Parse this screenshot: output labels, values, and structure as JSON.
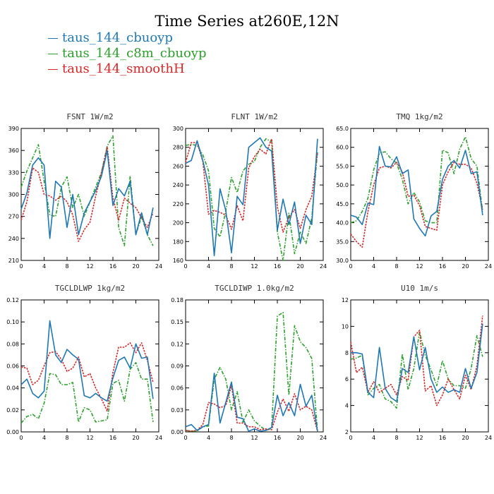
{
  "title": "Time Series at260E,12N",
  "legend": [
    {
      "label": "taus_144_cbuoyp",
      "color": "#1f77b4"
    },
    {
      "label": "taus_144_c8m_cbuoyp",
      "color": "#2ca02c"
    },
    {
      "label": "taus_144_smoothH",
      "color": "#d62728"
    }
  ],
  "chart_data": [
    {
      "type": "line",
      "title": "FSNT   1W/m2",
      "x": [
        0,
        1,
        2,
        3,
        4,
        5,
        6,
        7,
        8,
        9,
        10,
        11,
        12,
        13,
        14,
        15,
        16,
        17,
        18,
        19,
        20,
        21,
        22,
        23
      ],
      "xlim": [
        0,
        24
      ],
      "ylim": [
        210,
        390
      ],
      "xticks": [
        "0",
        "4",
        "8",
        "12",
        "16",
        "20",
        "24"
      ],
      "yticks": [
        "210",
        "240",
        "270",
        "300",
        "330",
        "360",
        "390"
      ],
      "series": [
        {
          "name": "taus_144_cbuoyp",
          "color": "#1f77b4",
          "values": [
            280,
            302,
            340,
            350,
            340,
            240,
            318,
            310,
            255,
            300,
            245,
            275,
            290,
            305,
            325,
            360,
            285,
            308,
            298,
            318,
            245,
            275,
            245,
            282
          ]
        },
        {
          "name": "taus_144_c8m_cbuoyp",
          "color": "#2ca02c",
          "values": [
            310,
            332,
            350,
            368,
            318,
            272,
            270,
            310,
            324,
            282,
            300,
            270,
            290,
            310,
            330,
            366,
            380,
            255,
            230,
            325,
            245,
            270,
            245,
            230
          ]
        },
        {
          "name": "taus_144_smoothH",
          "color": "#d62728",
          "values": [
            265,
            290,
            336,
            330,
            300,
            298,
            292,
            298,
            290,
            272,
            236,
            252,
            262,
            298,
            330,
            365,
            295,
            265,
            295,
            288,
            282,
            268,
            255,
            275
          ]
        }
      ]
    },
    {
      "type": "line",
      "title": "FLNT   1W/m2",
      "x": [
        0,
        1,
        2,
        3,
        4,
        5,
        6,
        7,
        8,
        9,
        10,
        11,
        12,
        13,
        14,
        15,
        16,
        17,
        18,
        19,
        20,
        21,
        22,
        23
      ],
      "xlim": [
        0,
        24
      ],
      "ylim": [
        160,
        300
      ],
      "xticks": [
        "0",
        "4",
        "8",
        "12",
        "16",
        "20",
        "24"
      ],
      "yticks": [
        "160",
        "180",
        "200",
        "220",
        "240",
        "260",
        "280",
        "300"
      ],
      "series": [
        {
          "name": "taus_144_cbuoyp",
          "color": "#1f77b4",
          "values": [
            263,
            266,
            287,
            266,
            240,
            165,
            236,
            213,
            168,
            228,
            219,
            280,
            285,
            290,
            280,
            276,
            192,
            225,
            198,
            222,
            178,
            208,
            198,
            289
          ]
        },
        {
          "name": "taus_144_c8m_cbuoyp",
          "color": "#2ca02c",
          "values": [
            282,
            283,
            282,
            272,
            255,
            194,
            185,
            212,
            248,
            232,
            255,
            262,
            265,
            280,
            289,
            286,
            190,
            160,
            210,
            167,
            190,
            178,
            205,
            276
          ]
        },
        {
          "name": "taus_144_smoothH",
          "color": "#d62728",
          "values": [
            264,
            285,
            285,
            265,
            209,
            213,
            211,
            208,
            193,
            218,
            202,
            258,
            270,
            278,
            273,
            289,
            217,
            190,
            206,
            214,
            194,
            214,
            228,
            274
          ]
        }
      ]
    },
    {
      "type": "line",
      "title": "TMQ   1kg/m2",
      "x": [
        0,
        1,
        2,
        3,
        4,
        5,
        6,
        7,
        8,
        9,
        10,
        11,
        12,
        13,
        14,
        15,
        16,
        17,
        18,
        19,
        20,
        21,
        22,
        23
      ],
      "xlim": [
        0,
        24
      ],
      "ylim": [
        30,
        65
      ],
      "xticks": [
        "0",
        "4",
        "8",
        "12",
        "16",
        "20",
        "24"
      ],
      "yticks": [
        "30.0",
        "35.0",
        "40.0",
        "45.0",
        "50.0",
        "55.0",
        "60.0",
        "65.0"
      ],
      "series": [
        {
          "name": "taus_144_cbuoyp",
          "color": "#1f77b4",
          "values": [
            42,
            41.5,
            39.5,
            45.2,
            44.8,
            60.2,
            55,
            54.8,
            57.5,
            53,
            54,
            41,
            38.5,
            36.5,
            41.8,
            43,
            51.5,
            55,
            56.5,
            54.5,
            59.2,
            53,
            53.5,
            42
          ]
        },
        {
          "name": "taus_144_c8m_cbuoyp",
          "color": "#2ca02c",
          "values": [
            40,
            40.5,
            43,
            46.5,
            54,
            58.5,
            58.8,
            57,
            55.8,
            51.5,
            45,
            48,
            45.5,
            40.5,
            40,
            40,
            59.3,
            58.5,
            53,
            59.5,
            62.8,
            57,
            55,
            43
          ]
        },
        {
          "name": "taus_144_smoothH",
          "color": "#d62728",
          "values": [
            37,
            35,
            33.5,
            43,
            50,
            54.5,
            55,
            54.5,
            56,
            53.5,
            47,
            47.3,
            44.5,
            39,
            38.5,
            38,
            50,
            53.5,
            56,
            55.5,
            55.5,
            54.5,
            50.5,
            43.5
          ]
        }
      ]
    },
    {
      "type": "line",
      "title": "TGCLDLWP   1kg/m2",
      "x": [
        0,
        1,
        2,
        3,
        4,
        5,
        6,
        7,
        8,
        9,
        10,
        11,
        12,
        13,
        14,
        15,
        16,
        17,
        18,
        19,
        20,
        21,
        22,
        23
      ],
      "xlim": [
        0,
        24
      ],
      "ylim": [
        0,
        0.12
      ],
      "xticks": [
        "0",
        "4",
        "8",
        "12",
        "16",
        "20",
        "24"
      ],
      "yticks": [
        "0.00",
        "0.02",
        "0.04",
        "0.06",
        "0.08",
        "0.10",
        "0.12"
      ],
      "series": [
        {
          "name": "taus_144_cbuoyp",
          "color": "#1f77b4",
          "values": [
            0.043,
            0.048,
            0.035,
            0.031,
            0.037,
            0.101,
            0.07,
            0.063,
            0.075,
            0.07,
            0.066,
            0.033,
            0.031,
            0.035,
            0.031,
            0.028,
            0.049,
            0.065,
            0.068,
            0.058,
            0.08,
            0.067,
            0.068,
            0.03
          ]
        },
        {
          "name": "taus_144_c8m_cbuoyp",
          "color": "#2ca02c",
          "values": [
            0.008,
            0.014,
            0.016,
            0.012,
            0.026,
            0.053,
            0.052,
            0.043,
            0.043,
            0.045,
            0.009,
            0.022,
            0.02,
            0.009,
            0.01,
            0.011,
            0.044,
            0.047,
            0.028,
            0.057,
            0.063,
            0.048,
            0.048,
            0.009
          ]
        },
        {
          "name": "taus_144_smoothH",
          "color": "#d62728",
          "values": [
            0.059,
            0.058,
            0.043,
            0.047,
            0.06,
            0.072,
            0.073,
            0.066,
            0.055,
            0.058,
            0.068,
            0.05,
            0.053,
            0.04,
            0.03,
            0.019,
            0.054,
            0.077,
            0.077,
            0.081,
            0.072,
            0.081,
            0.065,
            0.045
          ]
        }
      ]
    },
    {
      "type": "line",
      "title": "TGCLDIWP   1.0kg/m2",
      "x": [
        0,
        1,
        2,
        3,
        4,
        5,
        6,
        7,
        8,
        9,
        10,
        11,
        12,
        13,
        14,
        15,
        16,
        17,
        18,
        19,
        20,
        21,
        22,
        23
      ],
      "xlim": [
        0,
        24
      ],
      "ylim": [
        0,
        0.18
      ],
      "xticks": [
        "0",
        "4",
        "8",
        "12",
        "16",
        "20",
        "24"
      ],
      "yticks": [
        "0.00",
        "0.03",
        "0.06",
        "0.09",
        "0.12",
        "0.15",
        "0.18"
      ],
      "series": [
        {
          "name": "taus_144_cbuoyp",
          "color": "#1f77b4",
          "values": [
            0.007,
            0.01,
            0.002,
            0.007,
            0.01,
            0.08,
            0.012,
            0.04,
            0.068,
            0.02,
            0.018,
            0.001,
            0.004,
            0.001,
            0.002,
            0.006,
            0.05,
            0.022,
            0.04,
            0.022,
            0.065,
            0.035,
            0.05,
            0.001
          ]
        },
        {
          "name": "taus_144_c8m_cbuoyp",
          "color": "#2ca02c",
          "values": [
            0.002,
            0.001,
            0.001,
            0.007,
            0.008,
            0.072,
            0.088,
            0.072,
            0.03,
            0.055,
            0.013,
            0.03,
            0.015,
            0.008,
            0.002,
            0.005,
            0.158,
            0.163,
            0.05,
            0.145,
            0.123,
            0.115,
            0.1,
            0.001
          ]
        },
        {
          "name": "taus_144_smoothH",
          "color": "#d62728",
          "values": [
            0.002,
            0.001,
            0.002,
            0.01,
            0.04,
            0.038,
            0.033,
            0.036,
            0.063,
            0.012,
            0.012,
            0.007,
            0.007,
            0.003,
            0.004,
            0.003,
            0.027,
            0.045,
            0.028,
            0.052,
            0.03,
            0.035,
            0.03,
            0.001
          ]
        }
      ]
    },
    {
      "type": "line",
      "title": "U10   1m/s",
      "x": [
        0,
        1,
        2,
        3,
        4,
        5,
        6,
        7,
        8,
        9,
        10,
        11,
        12,
        13,
        14,
        15,
        16,
        17,
        18,
        19,
        20,
        21,
        22,
        23
      ],
      "xlim": [
        0,
        24
      ],
      "ylim": [
        2,
        12
      ],
      "xticks": [
        "0",
        "4",
        "8",
        "12",
        "16",
        "20",
        "24"
      ],
      "yticks": [
        "2",
        "4",
        "6",
        "8",
        "10",
        "12"
      ],
      "series": [
        {
          "name": "taus_144_cbuoyp",
          "color": "#1f77b4",
          "values": [
            8,
            8,
            7.9,
            5,
            4.6,
            8.4,
            5.3,
            4.6,
            4.3,
            6.8,
            6.5,
            9.2,
            6.7,
            8.4,
            6,
            5,
            5.4,
            5,
            5.2,
            5,
            6.8,
            5.3,
            6.5,
            10.2
          ]
        },
        {
          "name": "taus_144_c8m_cbuoyp",
          "color": "#2ca02c",
          "values": [
            7.5,
            7.6,
            7.8,
            4.8,
            5.3,
            5.6,
            4.5,
            4.3,
            3.8,
            7.9,
            5.2,
            6.8,
            9.6,
            7.8,
            6.7,
            5.5,
            7.4,
            6,
            5.5,
            5.5,
            5.3,
            6.8,
            9.3,
            7.7
          ]
        },
        {
          "name": "taus_144_smoothH",
          "color": "#d62728",
          "values": [
            8.8,
            6.5,
            6.9,
            5,
            5.8,
            5,
            5.3,
            5.6,
            4.8,
            6.2,
            5.9,
            9.2,
            9.7,
            5.1,
            5.5,
            4,
            4.8,
            6,
            5.2,
            4.5,
            6.3,
            5.2,
            7,
            10.8
          ]
        }
      ]
    }
  ]
}
